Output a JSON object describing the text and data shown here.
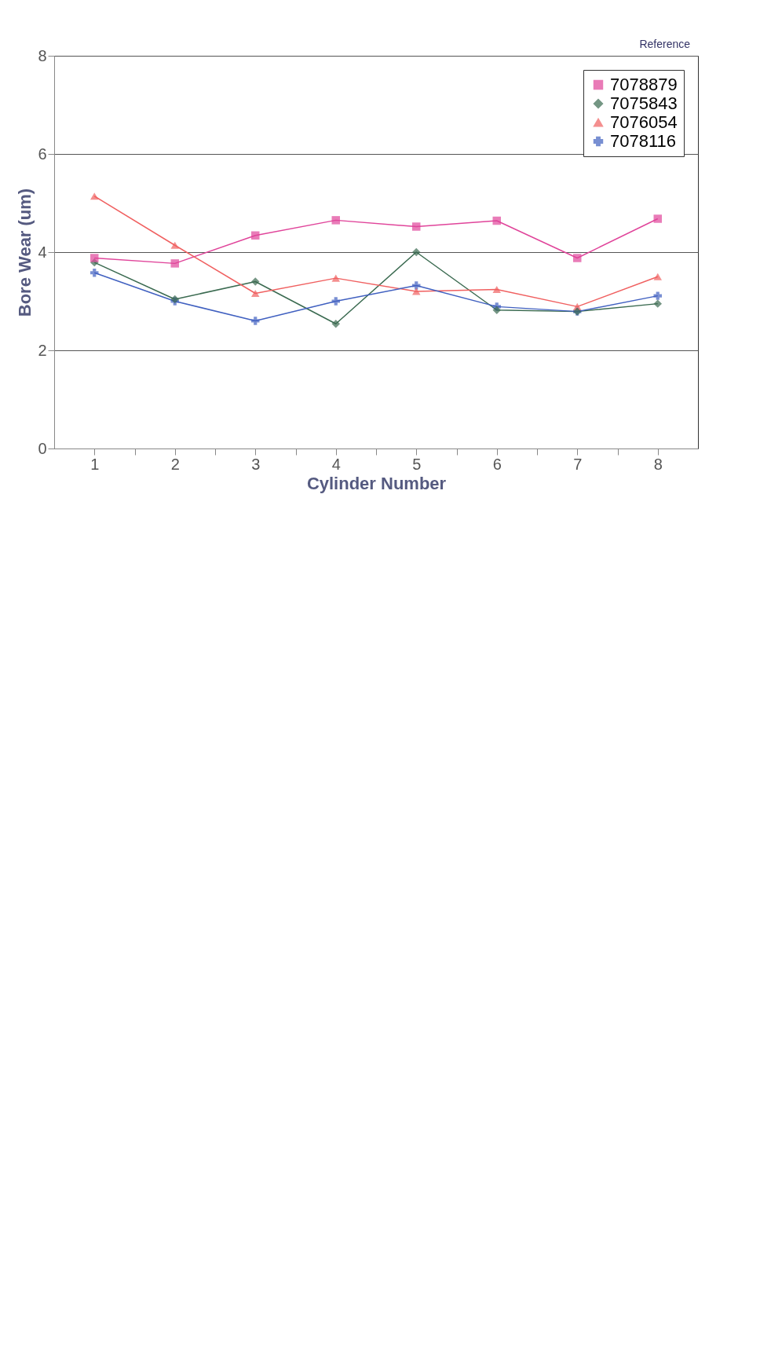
{
  "chart_data": {
    "type": "line",
    "xlabel": "Cylinder Number",
    "ylabel": "Bore Wear (um)",
    "x": [
      1,
      2,
      3,
      4,
      5,
      6,
      7,
      8
    ],
    "xlim": [
      0.5,
      8.5
    ],
    "xticks": [
      1,
      {
        "value": 1.5,
        "label": null
      },
      2,
      {
        "value": 2.5,
        "label": null
      },
      3,
      {
        "value": 3.5,
        "label": null
      },
      4,
      {
        "value": 4.5,
        "label": null
      },
      5,
      {
        "value": 5.5,
        "label": null
      },
      6,
      {
        "value": 6.5,
        "label": null
      },
      7,
      {
        "value": 7.5,
        "label": null
      },
      8
    ],
    "ylim": [
      0,
      8
    ],
    "yticks": [
      0,
      2,
      4,
      6,
      8
    ],
    "grid": "y",
    "legend": "top right",
    "annotations": [
      "Reference"
    ],
    "series": [
      {
        "name": "7078879",
        "color": "#e0449a",
        "marker": "square",
        "values": [
          3.88,
          3.77,
          4.34,
          4.65,
          4.52,
          4.64,
          3.88,
          4.68
        ]
      },
      {
        "name": "7075843",
        "color": "#3a6a50",
        "marker": "diamond",
        "values": [
          3.79,
          3.04,
          3.4,
          2.54,
          4.0,
          2.82,
          2.79,
          2.95
        ]
      },
      {
        "name": "7076054",
        "color": "#f06060",
        "marker": "triangle",
        "values": [
          5.14,
          4.14,
          3.16,
          3.47,
          3.2,
          3.24,
          2.89,
          3.5
        ]
      },
      {
        "name": "7078116",
        "color": "#4060c0",
        "marker": "cross",
        "values": [
          3.58,
          3.0,
          2.6,
          3.0,
          3.32,
          2.89,
          2.79,
          3.11
        ]
      }
    ]
  }
}
